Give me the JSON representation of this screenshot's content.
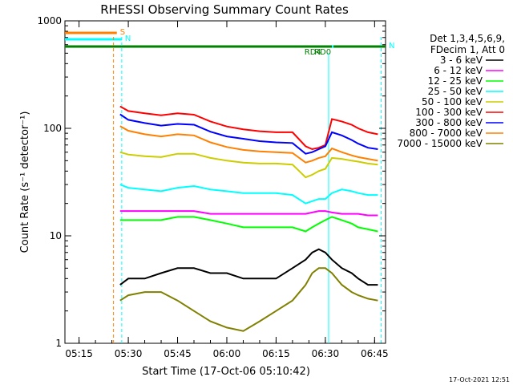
{
  "chart_data": {
    "type": "line",
    "title": "RHESSI Observing Summary Count Rates",
    "ylabel": "Count Rate (s⁻¹ detector⁻¹)",
    "xlabel": "Start Time (17-Oct-06 05:10:42)",
    "y_scale": "log",
    "ylim": [
      1,
      1000
    ],
    "xlim": [
      "05:10:42",
      "06:48:20"
    ],
    "y_ticks": [
      "1",
      "10",
      "100",
      "1000"
    ],
    "x_ticks": [
      "05:15",
      "05:30",
      "05:45",
      "06:00",
      "06:15",
      "06:30",
      "06:45"
    ],
    "x_tick_minutes": [
      15,
      30,
      45,
      60,
      75,
      90,
      105
    ],
    "legend_title": [
      "Det 1,3,4,5,6,9,",
      "FDecim 1, Att 0"
    ],
    "legend_position": "right",
    "timestamp": "17-Oct-2021 12:51",
    "bars": [
      {
        "label": "S",
        "color": "#ff8000",
        "start": "05:10:42",
        "end": "05:26:30"
      },
      {
        "label": "N",
        "color": "#00ffff",
        "start": "05:10:42",
        "end": "05:28:00"
      },
      {
        "label": "N",
        "color": "#00ffff",
        "start": "06:32:00",
        "end": "06:48:20"
      },
      {
        "label": "RD4",
        "color": "#008000",
        "start": "05:10:42",
        "end": "06:29:00"
      },
      {
        "label": "RD0",
        "color": "#008000",
        "start": "06:24:00",
        "end": "06:32:00"
      },
      {
        "label": "",
        "color": "#008000",
        "start": "06:32:30",
        "end": "06:48:20"
      }
    ],
    "vlines": [
      {
        "time": "05:25:30",
        "color": "#ff8000",
        "style": "dashed"
      },
      {
        "time": "05:28:00",
        "color": "#00ffff",
        "style": "dashed"
      },
      {
        "time": "06:31:00",
        "color": "#00ffff",
        "style": "solid"
      },
      {
        "time": "06:47:00",
        "color": "#00ffff",
        "style": "dashed"
      }
    ],
    "series": [
      {
        "name": "3 - 6 keV",
        "color": "#000000",
        "x": [
          "05:27:30",
          "05:30",
          "05:35",
          "05:40",
          "05:45",
          "05:50",
          "05:55",
          "06:00",
          "06:05",
          "06:10",
          "06:15",
          "06:20",
          "06:24",
          "06:26",
          "06:28",
          "06:30",
          "06:32",
          "06:35",
          "06:38",
          "06:40",
          "06:43",
          "06:46"
        ],
        "values": [
          3.5,
          4,
          4,
          4.5,
          5,
          5,
          4.5,
          4.5,
          4,
          4,
          4,
          5,
          6,
          7,
          7.5,
          7,
          6,
          5,
          4.5,
          4,
          3.5,
          3.5
        ]
      },
      {
        "name": "6 - 12 keV",
        "color": "#ff00ff",
        "x": [
          "05:27:30",
          "05:30",
          "05:35",
          "05:40",
          "05:45",
          "05:50",
          "05:55",
          "06:00",
          "06:05",
          "06:10",
          "06:15",
          "06:20",
          "06:24",
          "06:26",
          "06:28",
          "06:30",
          "06:32",
          "06:35",
          "06:38",
          "06:40",
          "06:43",
          "06:46"
        ],
        "values": [
          17,
          17,
          17,
          17,
          17,
          17,
          16,
          16,
          16,
          16,
          16,
          16,
          16,
          16.5,
          17,
          17,
          16.5,
          16,
          16,
          16,
          15.5,
          15.5
        ]
      },
      {
        "name": "12 - 25 keV",
        "color": "#00ff00",
        "x": [
          "05:27:30",
          "05:30",
          "05:35",
          "05:40",
          "05:45",
          "05:50",
          "05:55",
          "06:00",
          "06:05",
          "06:10",
          "06:15",
          "06:20",
          "06:24",
          "06:26",
          "06:28",
          "06:30",
          "06:32",
          "06:35",
          "06:38",
          "06:40",
          "06:43",
          "06:46"
        ],
        "values": [
          14,
          14,
          14,
          14,
          15,
          15,
          14,
          13,
          12,
          12,
          12,
          12,
          11,
          12,
          13,
          14,
          15,
          14,
          13,
          12,
          11.5,
          11
        ]
      },
      {
        "name": "25 - 50 keV",
        "color": "#00ffff",
        "x": [
          "05:27:30",
          "05:30",
          "05:35",
          "05:40",
          "05:45",
          "05:50",
          "05:55",
          "06:00",
          "06:05",
          "06:10",
          "06:15",
          "06:20",
          "06:24",
          "06:26",
          "06:28",
          "06:30",
          "06:32",
          "06:35",
          "06:38",
          "06:40",
          "06:43",
          "06:46"
        ],
        "values": [
          30,
          28,
          27,
          26,
          28,
          29,
          27,
          26,
          25,
          25,
          25,
          24,
          20,
          21,
          22,
          22,
          25,
          27,
          26,
          25,
          24,
          24
        ]
      },
      {
        "name": "50 - 100 keV",
        "color": "#cccc00",
        "x": [
          "05:27:30",
          "05:30",
          "05:35",
          "05:40",
          "05:45",
          "05:50",
          "05:55",
          "06:00",
          "06:05",
          "06:10",
          "06:15",
          "06:20",
          "06:24",
          "06:26",
          "06:28",
          "06:30",
          "06:32",
          "06:35",
          "06:38",
          "06:40",
          "06:43",
          "06:46"
        ],
        "values": [
          60,
          57,
          55,
          54,
          58,
          58,
          53,
          50,
          48,
          47,
          47,
          46,
          35,
          37,
          40,
          42,
          53,
          52,
          50,
          49,
          47,
          46
        ]
      },
      {
        "name": "100 - 300 keV",
        "color": "#ff0000",
        "x": [
          "05:27:30",
          "05:30",
          "05:35",
          "05:40",
          "05:45",
          "05:50",
          "05:55",
          "06:00",
          "06:05",
          "06:10",
          "06:15",
          "06:20",
          "06:24",
          "06:26",
          "06:28",
          "06:30",
          "06:32",
          "06:35",
          "06:38",
          "06:40",
          "06:43",
          "06:46"
        ],
        "values": [
          160,
          145,
          138,
          132,
          138,
          134,
          116,
          104,
          98,
          94,
          92,
          92,
          68,
          64,
          66,
          70,
          122,
          116,
          108,
          100,
          92,
          88
        ]
      },
      {
        "name": "300 - 800 keV",
        "color": "#0000ff",
        "x": [
          "05:27:30",
          "05:30",
          "05:35",
          "05:40",
          "05:45",
          "05:50",
          "05:55",
          "06:00",
          "06:05",
          "06:10",
          "06:15",
          "06:20",
          "06:24",
          "06:26",
          "06:28",
          "06:30",
          "06:32",
          "06:35",
          "06:38",
          "06:40",
          "06:43",
          "06:46"
        ],
        "values": [
          135,
          120,
          112,
          106,
          110,
          108,
          93,
          84,
          80,
          76,
          74,
          73,
          58,
          60,
          64,
          68,
          92,
          86,
          78,
          72,
          66,
          64
        ]
      },
      {
        "name": "800 - 7000 keV",
        "color": "#ff8000",
        "x": [
          "05:27:30",
          "05:30",
          "05:35",
          "05:40",
          "05:45",
          "05:50",
          "05:55",
          "06:00",
          "06:05",
          "06:10",
          "06:15",
          "06:20",
          "06:24",
          "06:26",
          "06:28",
          "06:30",
          "06:32",
          "06:35",
          "06:38",
          "06:40",
          "06:43",
          "06:46"
        ],
        "values": [
          105,
          95,
          88,
          84,
          88,
          86,
          74,
          67,
          63,
          61,
          60,
          59,
          48,
          50,
          53,
          55,
          65,
          60,
          56,
          54,
          52,
          50
        ]
      },
      {
        "name": "7000 - 15000 keV",
        "color": "#808000",
        "x": [
          "05:27:30",
          "05:30",
          "05:35",
          "05:40",
          "05:45",
          "05:50",
          "05:55",
          "06:00",
          "06:05",
          "06:10",
          "06:15",
          "06:20",
          "06:24",
          "06:26",
          "06:28",
          "06:30",
          "06:32",
          "06:35",
          "06:38",
          "06:40",
          "06:43",
          "06:46"
        ],
        "values": [
          2.5,
          2.8,
          3,
          3,
          2.5,
          2,
          1.6,
          1.4,
          1.3,
          1.6,
          2,
          2.5,
          3.5,
          4.5,
          5,
          5,
          4.5,
          3.5,
          3,
          2.8,
          2.6,
          2.5
        ]
      }
    ]
  }
}
